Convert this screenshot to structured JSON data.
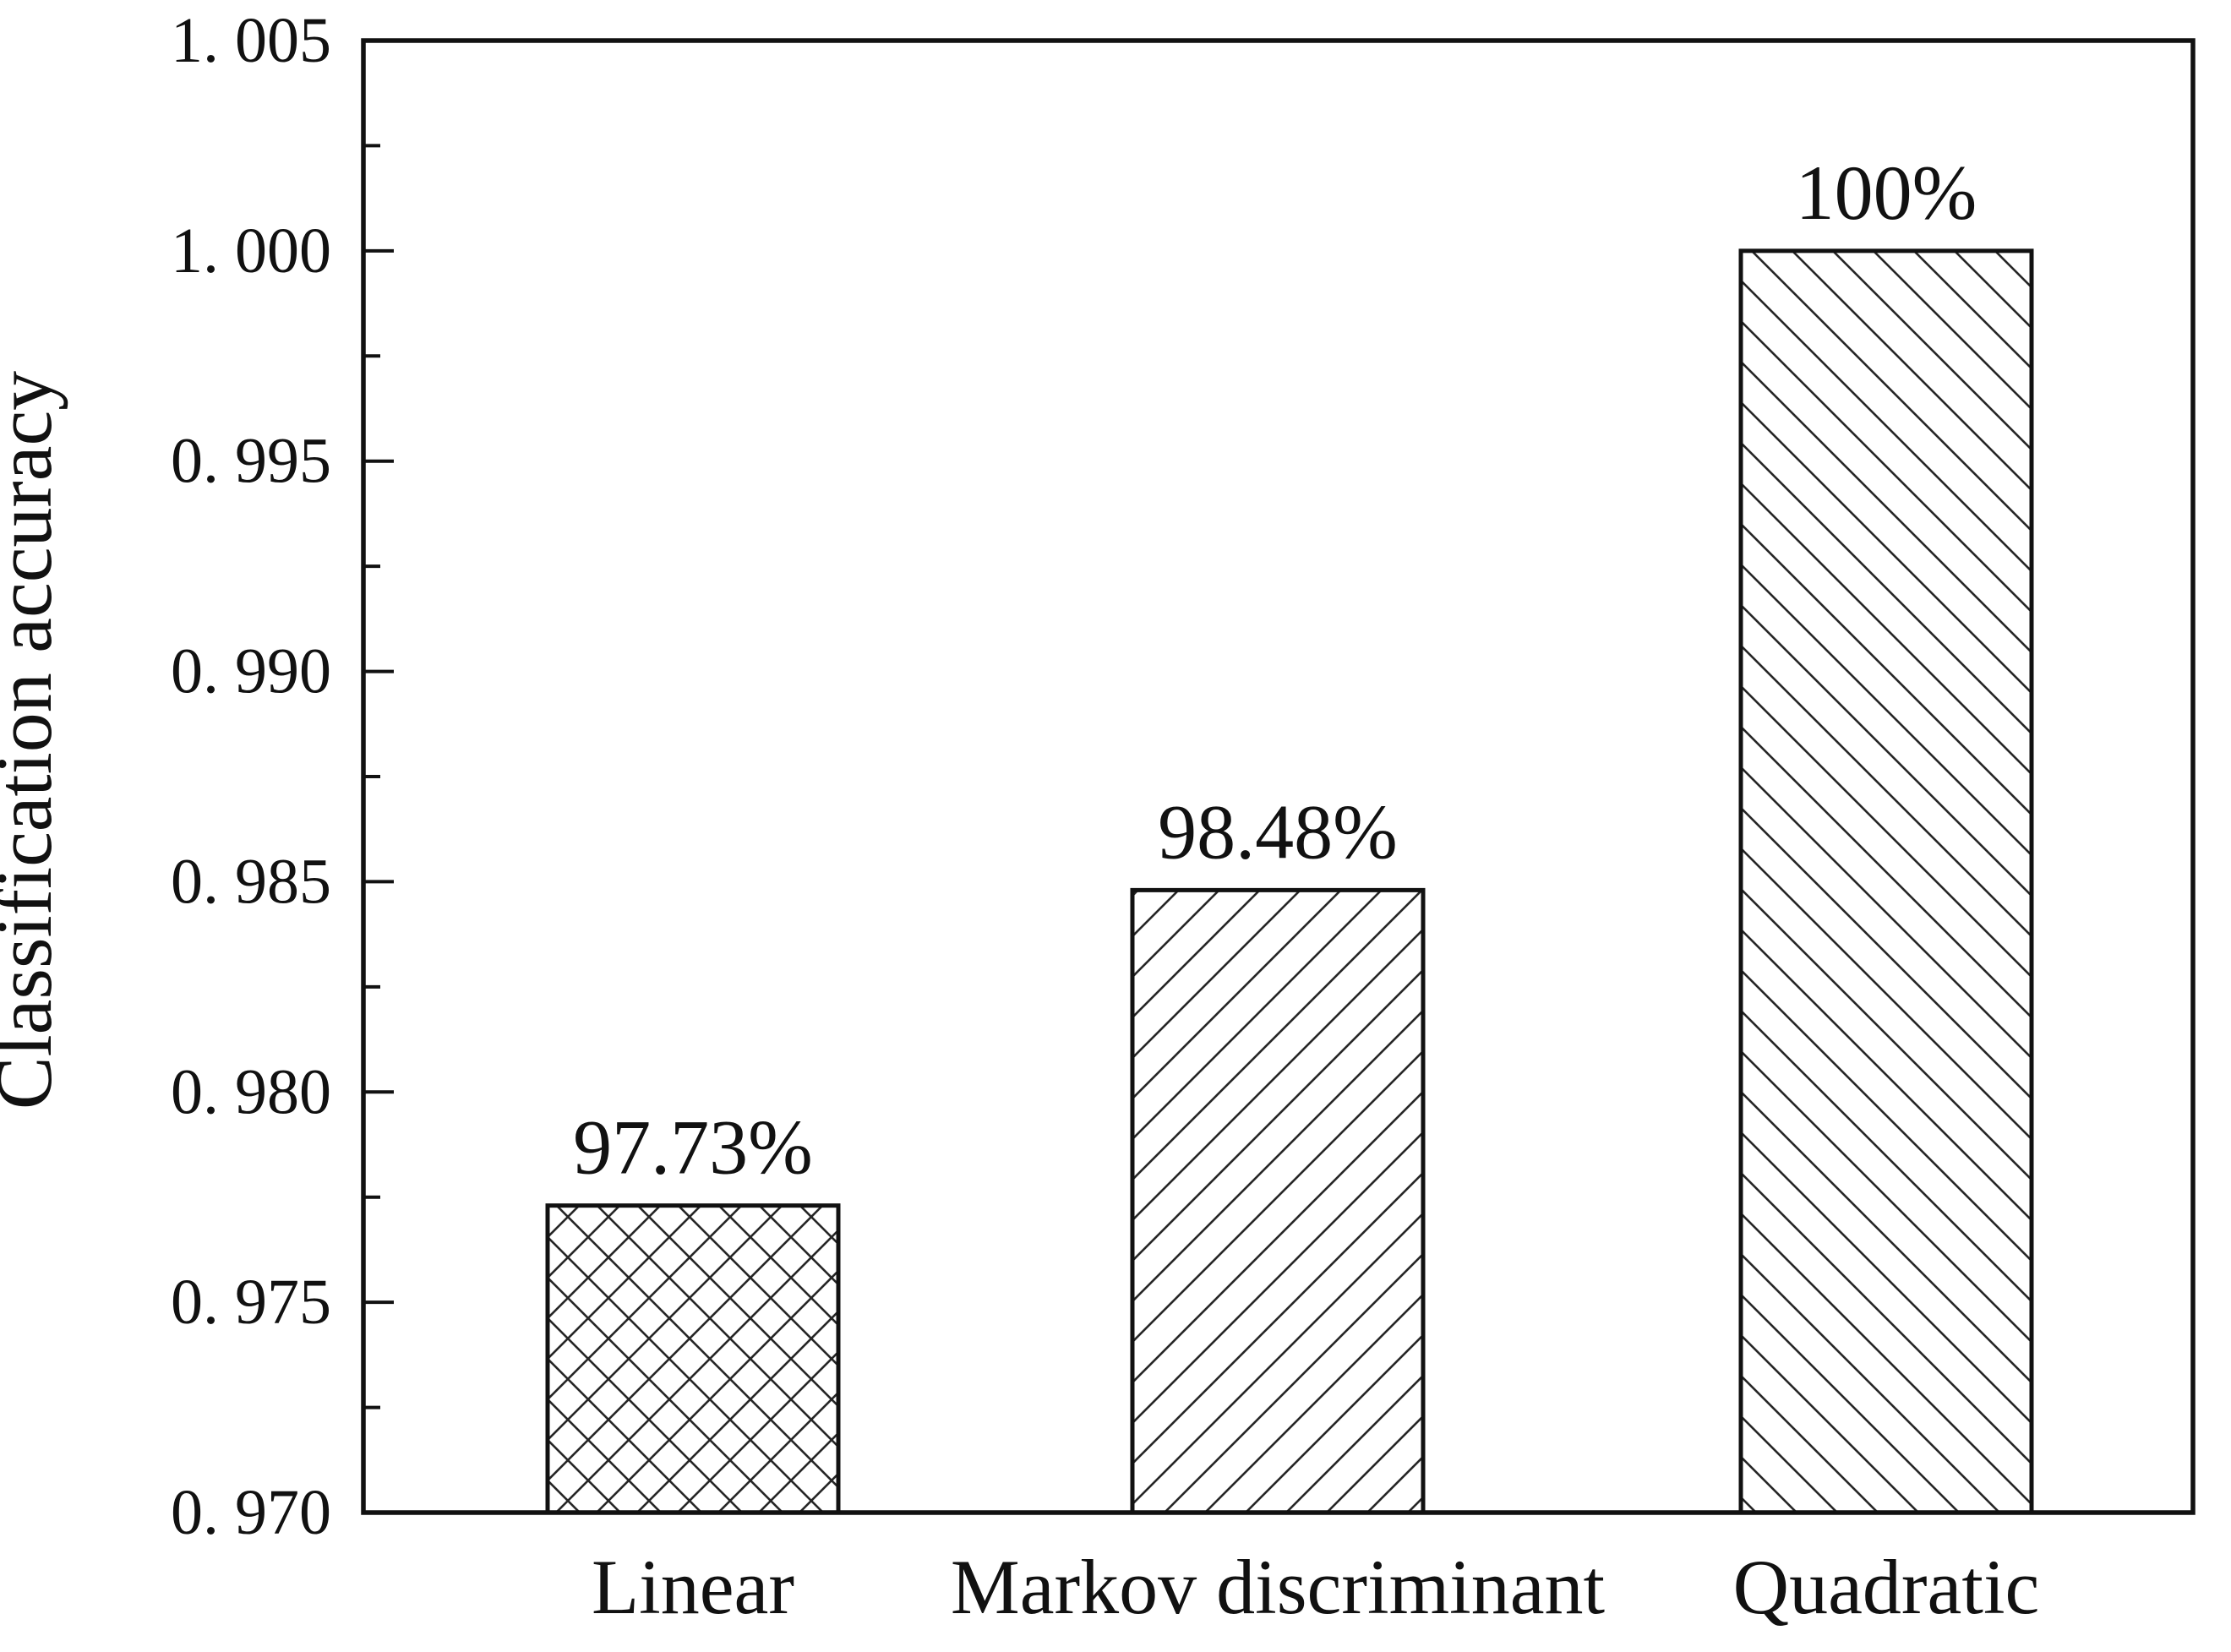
{
  "figure": {
    "background": "#ffffff",
    "ink_color": "#111111",
    "hatch_color": "#262626",
    "bar_fill": "#ffffff"
  },
  "chart_data": {
    "type": "bar",
    "title": "",
    "xlabel": "",
    "ylabel": "Classification accuracy",
    "categories": [
      "Linear",
      "Markov discriminant",
      "Quadratic"
    ],
    "values": [
      0.9773,
      0.9848,
      1.0
    ],
    "value_labels": [
      "97.73%",
      "98.48%",
      "100%"
    ],
    "bar_hatches": [
      "cross-diagonal",
      "forward-diagonal",
      "backward-diagonal"
    ],
    "ylim": [
      0.97,
      1.005
    ],
    "y_major_step": 0.005,
    "y_minor_step": 0.0025,
    "y_tick_labels": [
      "0. 970",
      "0. 975",
      "0. 980",
      "0. 985",
      "0. 990",
      "0. 995",
      "1. 000",
      "1. 005"
    ],
    "grid": false,
    "legend": null
  }
}
